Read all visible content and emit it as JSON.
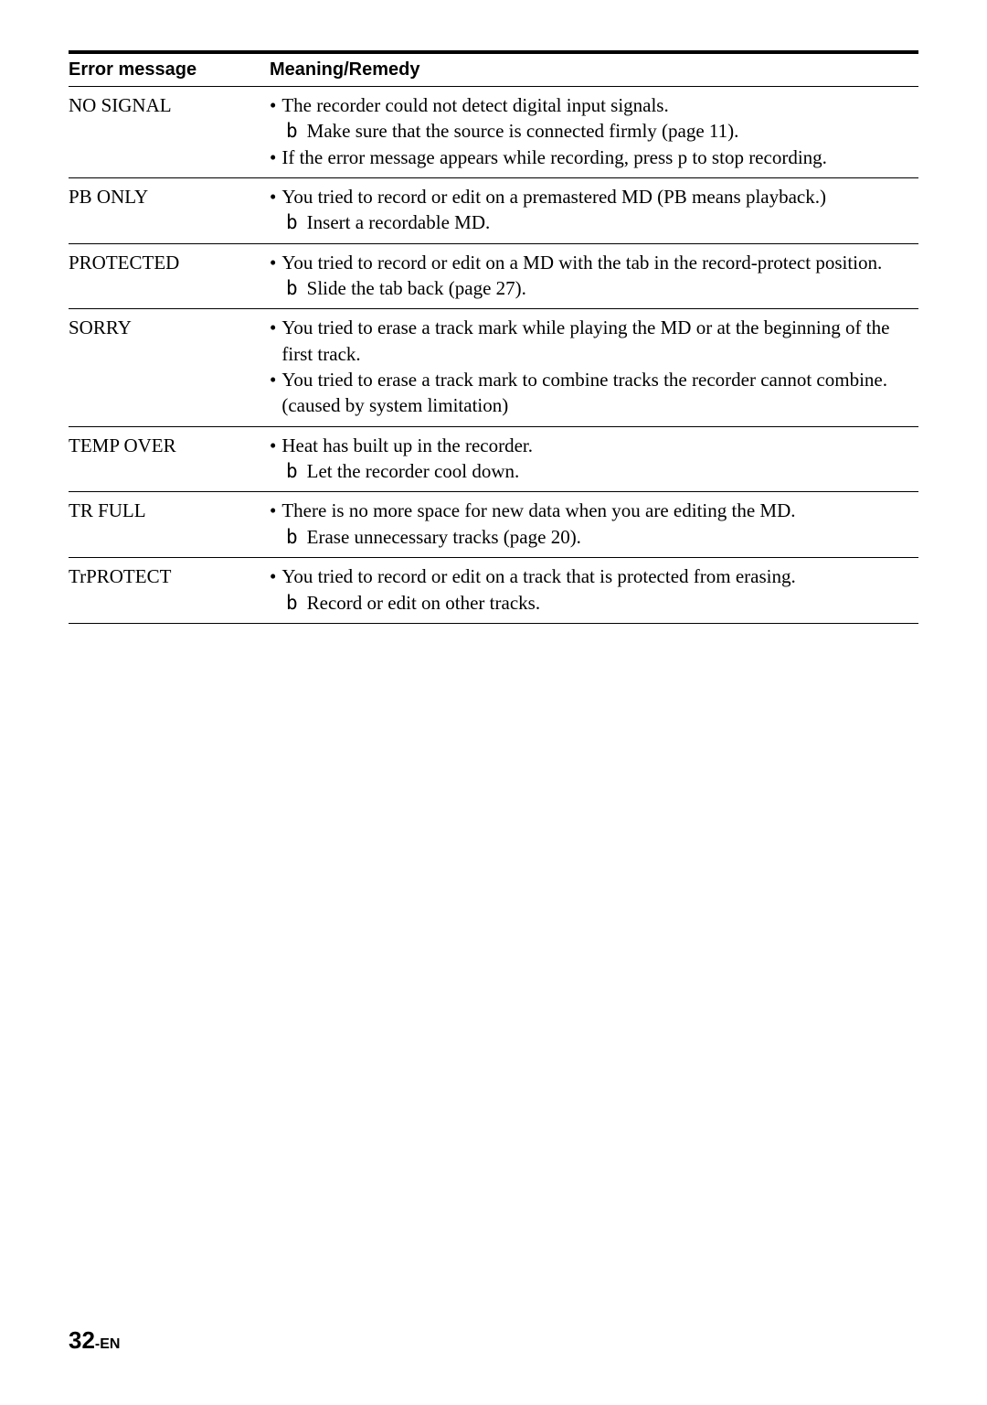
{
  "header": {
    "col1": "Error message",
    "col2": "Meaning/Remedy"
  },
  "rows": [
    {
      "error": "NO SIGNAL",
      "lines": [
        {
          "type": "bullet",
          "text": "The recorder could not detect digital input signals."
        },
        {
          "type": "sub",
          "text": "Make sure that the source is connected firmly (page 11)."
        },
        {
          "type": "bullet",
          "text": "If the error message appears while recording, press p  to stop recording."
        }
      ]
    },
    {
      "error": "PB ONLY",
      "lines": [
        {
          "type": "bullet",
          "text": "You tried to record or edit on a premastered MD (PB means playback.)"
        },
        {
          "type": "sub",
          "text": "Insert a recordable MD."
        }
      ]
    },
    {
      "error": "PROTECTED",
      "lines": [
        {
          "type": "bullet",
          "text": "You tried to record or edit on a MD with the tab in the record-protect position."
        },
        {
          "type": "sub",
          "text": "Slide the tab back (page 27)."
        }
      ]
    },
    {
      "error": "SORRY",
      "lines": [
        {
          "type": "bullet",
          "text": "You tried to erase a track mark while playing the MD or at the beginning of the first track."
        },
        {
          "type": "bullet",
          "text": "You tried to erase a track mark to combine tracks the recorder cannot combine. (caused by system limitation)"
        }
      ]
    },
    {
      "error": "TEMP OVER",
      "lines": [
        {
          "type": "bullet",
          "text": "Heat has built up in the recorder."
        },
        {
          "type": "sub",
          "text": "Let the recorder cool down."
        }
      ]
    },
    {
      "error": "TR FULL",
      "lines": [
        {
          "type": "bullet",
          "text": "There is no more space for new data when you are editing the MD."
        },
        {
          "type": "sub",
          "text": "Erase unnecessary tracks (page 20)."
        }
      ]
    },
    {
      "error": "TrPROTECT",
      "lines": [
        {
          "type": "bullet",
          "text": "You tried to record or edit on a track that is protected from erasing."
        },
        {
          "type": "sub",
          "text": "Record or edit on other tracks."
        }
      ]
    }
  ],
  "footer": {
    "page": "32",
    "suffix": "-EN"
  },
  "symbols": {
    "bullet": "•",
    "arrow": "b"
  },
  "style": {
    "text_color": "#000000",
    "bg_color": "#ffffff",
    "header_border_width": 4,
    "row_border_width": 1,
    "body_fontsize": 21,
    "header_fontsize": 20,
    "footer_num_fontsize": 26,
    "footer_suffix_fontsize": 16
  }
}
